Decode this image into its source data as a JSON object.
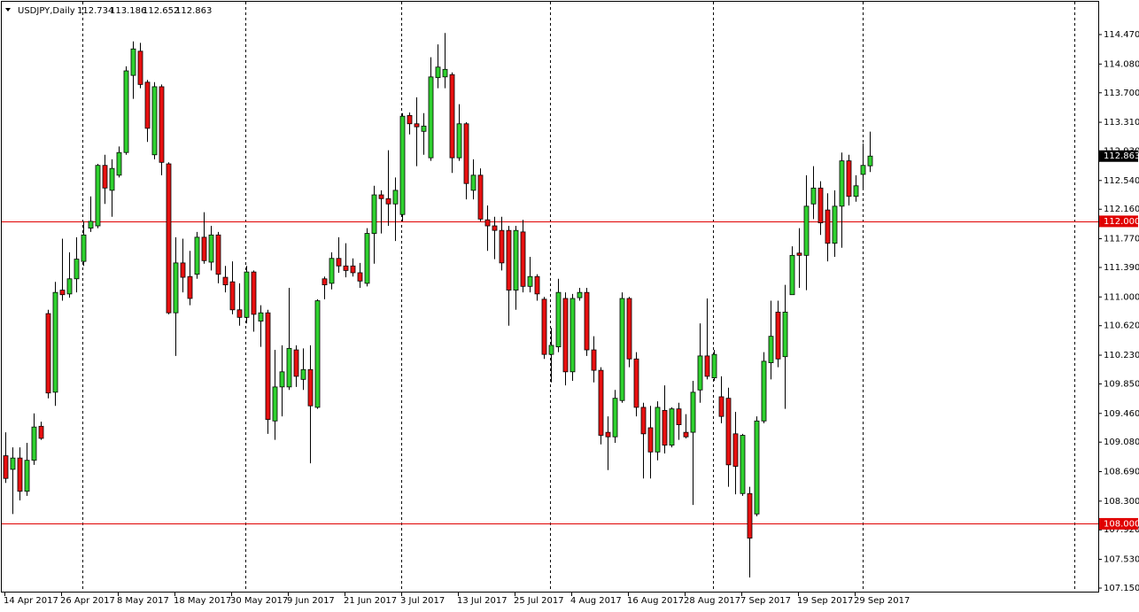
{
  "chart_data": {
    "type": "candlestick",
    "title": "USDJPY,Daily",
    "categories": [
      "14 Apr 2017",
      null,
      null,
      null,
      null,
      null,
      null,
      null,
      "26 Apr 2017",
      null,
      null,
      null,
      null,
      null,
      null,
      null,
      "8 May 2017",
      null,
      null,
      null,
      null,
      null,
      null,
      null,
      "18 May 2017",
      null,
      null,
      null,
      null,
      null,
      null,
      null,
      "30 May 2017",
      null,
      null,
      null,
      null,
      null,
      null,
      null,
      "9 Jun 2017",
      null,
      null,
      null,
      null,
      null,
      null,
      null,
      "21 Jun 2017",
      null,
      null,
      null,
      null,
      null,
      null,
      null,
      "3 Jul 2017",
      null,
      null,
      null,
      null,
      null,
      null,
      null,
      "13 Jul 2017",
      null,
      null,
      null,
      null,
      null,
      null,
      null,
      "25 Jul 2017",
      null,
      null,
      null,
      null,
      null,
      null,
      null,
      "4 Aug 2017",
      null,
      null,
      null,
      null,
      null,
      null,
      null,
      "16 Aug 2017",
      null,
      null,
      null,
      null,
      null,
      null,
      null,
      "28 Aug 2017",
      null,
      null,
      null,
      null,
      null,
      null,
      null,
      "7 Sep 2017",
      null,
      null,
      null,
      null,
      null,
      null,
      null,
      "19 Sep 2017",
      null,
      null,
      null,
      null,
      null,
      null,
      null,
      "29 Sep 2017",
      null,
      null
    ],
    "open": [
      108.9,
      108.72,
      108.87,
      108.43,
      108.84,
      109.29,
      110.78,
      109.74,
      111.09,
      111.04,
      111.24,
      111.47,
      111.91,
      111.94,
      112.74,
      112.41,
      112.61,
      112.91,
      113.93,
      114.25,
      113.84,
      112.88,
      113.78,
      112.76,
      110.79,
      111.45,
      111.27,
      111.3,
      111.79,
      111.46,
      111.82,
      111.26,
      111.2,
      110.83,
      110.73,
      111.33,
      110.68,
      110.79,
      109.36,
      109.81,
      109.81,
      110.3,
      109.91,
      110.04,
      109.54,
      111.24,
      111.18,
      111.51,
      111.41,
      111.41,
      111.32,
      111.18,
      111.84,
      112.35,
      112.3,
      112.23,
      112.09,
      113.4,
      113.29,
      113.19,
      112.84,
      113.9,
      113.91,
      113.94,
      112.84,
      113.29,
      112.41,
      112.61,
      112.02,
      111.94,
      111.88,
      111.88,
      111.09,
      111.86,
      111.14,
      111.27,
      110.97,
      110.24,
      110.34,
      110.98,
      110.01,
      110.99,
      111.06,
      110.3,
      110.03,
      109.21,
      109.15,
      109.63,
      110.98,
      110.18,
      109.54,
      109.27,
      108.95,
      109.5,
      109.04,
      109.52,
      109.21,
      109.21,
      109.77,
      110.22,
      109.93,
      109.68,
      109.66,
      109.19,
      108.4,
      108.4,
      108.13,
      109.36,
      110.13,
      110.8,
      110.21,
      111.03,
      111.58,
      111.55,
      112.23,
      112.44,
      112.15,
      111.71,
      112.2,
      112.8,
      112.33,
      112.62,
      112.734
    ],
    "high": [
      109.21,
      109.01,
      109.01,
      109.07,
      109.46,
      109.35,
      110.83,
      111.2,
      111.77,
      111.59,
      111.79,
      112.0,
      112.33,
      112.76,
      112.88,
      112.82,
      112.99,
      114.05,
      114.38,
      114.36,
      113.87,
      113.84,
      113.81,
      112.78,
      111.79,
      111.77,
      111.61,
      111.86,
      112.12,
      111.94,
      111.86,
      111.41,
      111.47,
      111.18,
      111.41,
      111.35,
      110.89,
      110.83,
      110.3,
      110.36,
      111.12,
      110.36,
      110.32,
      110.36,
      110.97,
      111.27,
      111.59,
      111.79,
      111.71,
      111.51,
      111.45,
      111.91,
      112.47,
      112.41,
      112.94,
      112.58,
      113.43,
      113.44,
      113.64,
      113.43,
      114.17,
      114.34,
      114.49,
      113.97,
      113.55,
      113.31,
      112.82,
      112.7,
      112.21,
      112.06,
      112.06,
      111.94,
      111.94,
      112.02,
      111.53,
      111.3,
      111.0,
      110.59,
      111.24,
      111.06,
      111.04,
      111.12,
      111.12,
      110.48,
      110.07,
      109.42,
      109.77,
      111.06,
      111.0,
      110.27,
      109.6,
      109.56,
      109.62,
      109.83,
      109.54,
      109.6,
      109.45,
      109.89,
      110.65,
      110.98,
      110.3,
      109.95,
      109.8,
      109.48,
      109.19,
      108.49,
      109.42,
      110.27,
      110.95,
      110.95,
      111.16,
      111.67,
      111.91,
      112.61,
      112.73,
      112.53,
      112.37,
      112.41,
      112.91,
      112.88,
      112.61,
      113.03,
      113.186
    ],
    "low": [
      108.54,
      108.13,
      108.31,
      108.37,
      108.78,
      109.11,
      109.66,
      109.56,
      110.95,
      110.99,
      111.06,
      111.41,
      111.86,
      111.91,
      112.23,
      112.06,
      112.58,
      112.88,
      113.62,
      113.76,
      113.05,
      112.82,
      112.61,
      110.77,
      110.22,
      111.06,
      110.89,
      111.24,
      111.44,
      111.35,
      111.18,
      111.06,
      110.77,
      110.62,
      110.65,
      110.54,
      110.34,
      109.19,
      109.11,
      109.42,
      109.77,
      109.81,
      109.77,
      108.8,
      109.52,
      110.97,
      111.1,
      111.32,
      111.26,
      111.27,
      111.12,
      111.14,
      111.44,
      111.84,
      111.94,
      111.74,
      112.0,
      113.15,
      112.73,
      112.88,
      112.8,
      113.76,
      113.76,
      112.64,
      112.8,
      112.29,
      112.29,
      112.0,
      111.61,
      111.5,
      111.35,
      110.62,
      110.83,
      111.06,
      111.06,
      110.95,
      110.18,
      109.87,
      110.27,
      109.83,
      109.89,
      110.95,
      110.22,
      109.87,
      109.05,
      108.71,
      109.07,
      109.6,
      110.07,
      109.42,
      108.6,
      108.6,
      108.84,
      108.93,
      109.01,
      109.11,
      109.13,
      108.25,
      109.6,
      109.91,
      109.89,
      109.33,
      108.49,
      108.39,
      108.37,
      107.29,
      108.1,
      109.33,
      109.91,
      110.07,
      109.52,
      111.03,
      111.12,
      111.09,
      112.03,
      111.82,
      111.47,
      111.53,
      111.65,
      112.21,
      112.26,
      112.44,
      112.652
    ],
    "close": [
      108.6,
      108.87,
      108.43,
      108.84,
      109.28,
      109.13,
      109.73,
      111.06,
      111.03,
      111.24,
      111.5,
      111.82,
      112.0,
      112.74,
      112.44,
      112.7,
      112.91,
      113.99,
      114.28,
      113.81,
      113.23,
      113.78,
      112.78,
      110.79,
      111.45,
      111.26,
      110.98,
      111.79,
      111.48,
      111.82,
      111.3,
      111.16,
      110.83,
      110.73,
      111.33,
      110.77,
      110.79,
      109.38,
      109.81,
      110.01,
      110.32,
      109.95,
      110.04,
      109.56,
      110.95,
      111.16,
      111.51,
      111.41,
      111.35,
      111.32,
      111.21,
      111.84,
      112.35,
      112.3,
      112.23,
      112.41,
      113.39,
      113.29,
      113.25,
      113.26,
      113.91,
      114.04,
      114.01,
      112.84,
      113.29,
      112.5,
      112.61,
      112.03,
      111.94,
      111.88,
      111.45,
      111.09,
      111.88,
      111.14,
      111.27,
      111.04,
      110.24,
      110.36,
      111.06,
      110.01,
      110.98,
      111.06,
      110.3,
      110.03,
      109.17,
      109.15,
      109.66,
      110.98,
      110.18,
      109.54,
      109.19,
      108.95,
      109.54,
      109.04,
      109.52,
      109.31,
      109.15,
      109.74,
      110.22,
      109.95,
      110.24,
      109.42,
      108.78,
      108.76,
      109.17,
      107.81,
      109.36,
      110.15,
      110.48,
      110.18,
      110.8,
      111.55,
      111.55,
      112.2,
      112.44,
      111.98,
      111.71,
      112.2,
      112.8,
      112.33,
      112.47,
      112.74,
      112.863
    ],
    "up_color": "#2fd12f",
    "down_color": "#e81010",
    "ylim": [
      107.103,
      114.927
    ],
    "yticks": [
      {
        "value": 114.47,
        "label": "114.470"
      },
      {
        "value": 114.08,
        "label": "114.080"
      },
      {
        "value": 113.7,
        "label": "113.700"
      },
      {
        "value": 113.31,
        "label": "113.310"
      },
      {
        "value": 112.93,
        "label": "112.930"
      },
      {
        "value": 112.54,
        "label": "112.540"
      },
      {
        "value": 112.16,
        "label": "112.160"
      },
      {
        "value": 111.77,
        "label": "111.770"
      },
      {
        "value": 111.39,
        "label": "111.390"
      },
      {
        "value": 111,
        "label": "111.000"
      },
      {
        "value": 110.62,
        "label": "110.620"
      },
      {
        "value": 110.23,
        "label": "110.230"
      },
      {
        "value": 109.85,
        "label": "109.850"
      },
      {
        "value": 109.46,
        "label": "109.460"
      },
      {
        "value": 109.08,
        "label": "109.080"
      },
      {
        "value": 108.69,
        "label": "108.690"
      },
      {
        "value": 108.3,
        "label": "108.300"
      },
      {
        "value": 107.92,
        "label": "107.920"
      },
      {
        "value": 107.53,
        "label": "107.530"
      },
      {
        "value": 107.15,
        "label": "107.150"
      }
    ],
    "hlines": [
      {
        "value": 112,
        "label": "112.000"
      },
      {
        "value": 108,
        "label": "108.000"
      }
    ],
    "hline_color": "#e00000"
  }
}
